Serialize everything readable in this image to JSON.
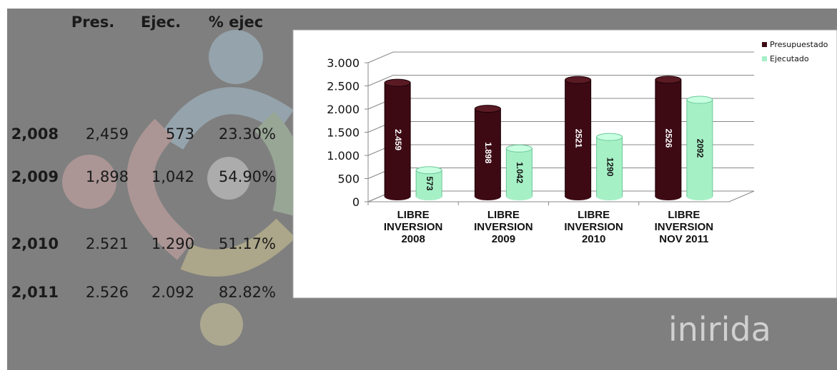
{
  "table": {
    "header": [
      "Pres.",
      "Ejec.",
      "% ejec"
    ],
    "rows": [
      [
        "2,008",
        "2,459",
        "573",
        "23.30%"
      ],
      [
        "2,009",
        "1,898",
        "1,042",
        "54.90%"
      ],
      [
        "2,010",
        "2.521",
        "1.290",
        "51.17%"
      ],
      [
        "2,011",
        "2.526",
        "2.092",
        "82.82%"
      ]
    ]
  },
  "logo_text": "inirida",
  "chart_data": {
    "type": "bar",
    "categories": [
      "LIBRE INVERSION 2008",
      "LIBRE INVERSION 2009",
      "LIBRE INVERSION 2010",
      "LIBRE INVERSION NOV 2011"
    ],
    "series": [
      {
        "name": "Presupuestado",
        "color": "#3d0a14",
        "values": [
          2459,
          1898,
          2521,
          2526
        ],
        "value_labels": [
          "2.459",
          "1.898",
          "2521",
          "2526"
        ]
      },
      {
        "name": "Ejecutado",
        "color": "#a6f0c6",
        "values": [
          573,
          1042,
          1290,
          2092
        ],
        "value_labels": [
          "573",
          "1.042",
          "1290",
          "2092"
        ]
      }
    ],
    "ylim": [
      0,
      3000
    ],
    "yticks": [
      0,
      500,
      {
        "value": 1000,
        "label": "1.000"
      },
      {
        "value": 1500,
        "label": "1.500"
      },
      {
        "value": 2000,
        "label": "2.000"
      },
      {
        "value": 2500,
        "label": "2.500"
      },
      {
        "value": 3000,
        "label": "3.000"
      }
    ],
    "grid": true,
    "legend": "right"
  }
}
